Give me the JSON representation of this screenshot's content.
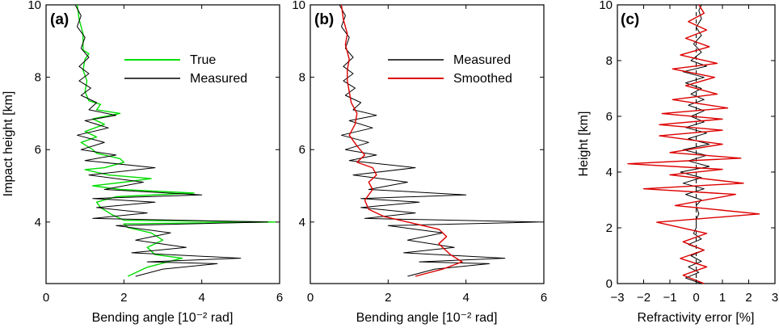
{
  "chart_data": [
    {
      "panel": "(a)",
      "type": "line",
      "xlabel": "Bending angle [10⁻² rad]",
      "ylabel": "Impact height [km]",
      "xlim": [
        0,
        6
      ],
      "ylim": [
        2.3,
        10
      ],
      "xticks": [
        "0",
        "2",
        "4",
        "6"
      ],
      "yticks": [
        "4",
        "6",
        "8",
        "10"
      ],
      "legend": "top-right",
      "series": [
        {
          "name": "True",
          "color": "#00dd00",
          "points": [
            [
              2.1,
              2.5
            ],
            [
              2.6,
              2.75
            ],
            [
              3.3,
              2.95
            ],
            [
              3.5,
              3.0
            ],
            [
              2.8,
              3.1
            ],
            [
              2.6,
              3.3
            ],
            [
              3.0,
              3.5
            ],
            [
              2.7,
              3.7
            ],
            [
              2.1,
              3.85
            ],
            [
              2.0,
              3.95
            ],
            [
              5.9,
              4.0
            ],
            [
              2.0,
              4.05
            ],
            [
              1.7,
              4.2
            ],
            [
              1.4,
              4.4
            ],
            [
              1.3,
              4.55
            ],
            [
              1.8,
              4.7
            ],
            [
              3.8,
              4.8
            ],
            [
              1.9,
              4.9
            ],
            [
              1.2,
              5.0
            ],
            [
              2.0,
              5.1
            ],
            [
              2.7,
              5.2
            ],
            [
              1.6,
              5.3
            ],
            [
              1.0,
              5.45
            ],
            [
              1.5,
              5.5
            ],
            [
              2.0,
              5.65
            ],
            [
              1.9,
              5.75
            ],
            [
              1.3,
              5.9
            ],
            [
              1.2,
              6.0
            ],
            [
              0.9,
              6.2
            ],
            [
              1.3,
              6.35
            ],
            [
              1.0,
              6.5
            ],
            [
              1.5,
              6.7
            ],
            [
              1.2,
              6.85
            ],
            [
              1.9,
              7.0
            ],
            [
              1.3,
              7.1
            ],
            [
              1.4,
              7.25
            ],
            [
              1.1,
              7.35
            ],
            [
              1.0,
              7.6
            ],
            [
              1.05,
              7.9
            ],
            [
              0.95,
              8.2
            ],
            [
              1.0,
              8.5
            ],
            [
              1.1,
              8.65
            ],
            [
              0.95,
              8.75
            ],
            [
              0.95,
              9.2
            ],
            [
              0.85,
              9.6
            ],
            [
              0.8,
              10.0
            ]
          ]
        },
        {
          "name": "Measured",
          "color": "#000000",
          "points": [
            [
              2.3,
              2.5
            ],
            [
              3.0,
              2.7
            ],
            [
              4.4,
              2.85
            ],
            [
              2.6,
              2.9
            ],
            [
              5.0,
              3.0
            ],
            [
              2.2,
              3.15
            ],
            [
              3.6,
              3.3
            ],
            [
              2.3,
              3.5
            ],
            [
              3.2,
              3.7
            ],
            [
              1.8,
              3.9
            ],
            [
              5.7,
              4.0
            ],
            [
              1.2,
              4.1
            ],
            [
              2.6,
              4.25
            ],
            [
              1.3,
              4.4
            ],
            [
              2.8,
              4.55
            ],
            [
              1.2,
              4.65
            ],
            [
              4.0,
              4.75
            ],
            [
              1.5,
              4.9
            ],
            [
              2.5,
              5.1
            ],
            [
              1.1,
              5.3
            ],
            [
              2.8,
              5.5
            ],
            [
              1.0,
              5.7
            ],
            [
              1.8,
              5.85
            ],
            [
              0.9,
              6.0
            ],
            [
              1.5,
              6.2
            ],
            [
              0.8,
              6.4
            ],
            [
              1.6,
              6.6
            ],
            [
              1.0,
              6.8
            ],
            [
              1.8,
              6.95
            ],
            [
              1.1,
              7.1
            ],
            [
              1.3,
              7.3
            ],
            [
              0.9,
              7.5
            ],
            [
              1.15,
              7.7
            ],
            [
              0.85,
              7.9
            ],
            [
              1.1,
              8.1
            ],
            [
              0.85,
              8.3
            ],
            [
              1.1,
              8.55
            ],
            [
              0.9,
              8.8
            ],
            [
              1.0,
              9.1
            ],
            [
              0.8,
              9.4
            ],
            [
              0.9,
              9.7
            ],
            [
              0.75,
              10.0
            ]
          ]
        }
      ]
    },
    {
      "panel": "(b)",
      "type": "line",
      "xlabel": "Bending angle [10⁻² rad]",
      "ylabel": "",
      "xlim": [
        0,
        6
      ],
      "ylim": [
        2.3,
        10
      ],
      "xticks": [
        "0",
        "2",
        "4",
        "6"
      ],
      "yticks": [
        "4",
        "6",
        "8",
        "10"
      ],
      "legend": "top-right",
      "series": [
        {
          "name": "Measured",
          "color": "#000000",
          "points": [
            [
              2.5,
              2.5
            ],
            [
              3.2,
              2.7
            ],
            [
              4.6,
              2.85
            ],
            [
              2.8,
              2.9
            ],
            [
              5.0,
              3.0
            ],
            [
              2.4,
              3.15
            ],
            [
              3.7,
              3.3
            ],
            [
              2.5,
              3.5
            ],
            [
              3.4,
              3.7
            ],
            [
              2.0,
              3.9
            ],
            [
              5.9,
              4.0
            ],
            [
              1.4,
              4.1
            ],
            [
              2.7,
              4.25
            ],
            [
              1.3,
              4.4
            ],
            [
              2.8,
              4.55
            ],
            [
              1.3,
              4.65
            ],
            [
              4.0,
              4.75
            ],
            [
              1.5,
              4.9
            ],
            [
              2.5,
              5.1
            ],
            [
              1.1,
              5.3
            ],
            [
              2.7,
              5.5
            ],
            [
              1.0,
              5.7
            ],
            [
              1.7,
              5.85
            ],
            [
              0.9,
              6.0
            ],
            [
              1.5,
              6.2
            ],
            [
              0.8,
              6.4
            ],
            [
              1.6,
              6.6
            ],
            [
              1.0,
              6.8
            ],
            [
              1.7,
              6.95
            ],
            [
              1.1,
              7.1
            ],
            [
              1.3,
              7.3
            ],
            [
              0.9,
              7.5
            ],
            [
              1.15,
              7.7
            ],
            [
              0.85,
              7.9
            ],
            [
              1.1,
              8.1
            ],
            [
              0.85,
              8.3
            ],
            [
              1.1,
              8.55
            ],
            [
              0.9,
              8.8
            ],
            [
              1.0,
              9.1
            ],
            [
              0.8,
              9.4
            ],
            [
              0.9,
              9.7
            ],
            [
              0.75,
              10.0
            ]
          ]
        },
        {
          "name": "Smoothed",
          "color": "#dd0000",
          "points": [
            [
              2.7,
              2.5
            ],
            [
              3.4,
              2.7
            ],
            [
              3.9,
              2.9
            ],
            [
              3.6,
              3.1
            ],
            [
              3.3,
              3.4
            ],
            [
              3.5,
              3.6
            ],
            [
              3.3,
              3.8
            ],
            [
              2.5,
              4.0
            ],
            [
              1.9,
              4.15
            ],
            [
              1.5,
              4.35
            ],
            [
              1.4,
              4.6
            ],
            [
              1.6,
              4.9
            ],
            [
              1.5,
              5.1
            ],
            [
              1.7,
              5.3
            ],
            [
              1.6,
              5.5
            ],
            [
              1.2,
              5.65
            ],
            [
              1.4,
              5.85
            ],
            [
              1.2,
              6.1
            ],
            [
              1.0,
              6.4
            ],
            [
              1.15,
              6.7
            ],
            [
              1.2,
              7.0
            ],
            [
              1.05,
              7.3
            ],
            [
              1.0,
              7.6
            ],
            [
              0.95,
              7.9
            ],
            [
              0.95,
              8.2
            ],
            [
              1.0,
              8.5
            ],
            [
              0.9,
              8.9
            ],
            [
              0.95,
              9.2
            ],
            [
              0.85,
              9.6
            ],
            [
              0.8,
              10.0
            ]
          ]
        }
      ]
    },
    {
      "panel": "(c)",
      "type": "line",
      "xlabel": "Refractivity error [%]",
      "ylabel": "Height [km]",
      "xlim": [
        -3,
        3
      ],
      "ylim": [
        0,
        10
      ],
      "xticks": [
        "−3",
        "−2",
        "−1",
        "0",
        "1",
        "2",
        "3"
      ],
      "yticks": [
        "0",
        "2",
        "4",
        "6",
        "8",
        "10"
      ],
      "zero_line": "dashed",
      "series": [
        {
          "name": "black",
          "color": "#000000",
          "points": [
            [
              0.2,
              0
            ],
            [
              -0.4,
              0.2
            ],
            [
              0.1,
              0.4
            ],
            [
              -0.3,
              0.6
            ],
            [
              0.2,
              0.8
            ],
            [
              -0.2,
              1.0
            ],
            [
              0.3,
              1.2
            ],
            [
              -0.3,
              1.4
            ],
            [
              0.2,
              1.6
            ],
            [
              -0.1,
              1.8
            ],
            [
              0.0,
              2.0
            ],
            [
              0.0,
              2.3
            ],
            [
              0.1,
              2.5
            ],
            [
              0.0,
              2.8
            ],
            [
              0.2,
              3.0
            ],
            [
              -0.4,
              3.2
            ],
            [
              0.3,
              3.4
            ],
            [
              -0.5,
              3.6
            ],
            [
              0.2,
              3.8
            ],
            [
              -0.6,
              4.0
            ],
            [
              0.5,
              4.2
            ],
            [
              -0.3,
              4.4
            ],
            [
              0.4,
              4.6
            ],
            [
              -0.5,
              4.8
            ],
            [
              0.5,
              5.0
            ],
            [
              -0.3,
              5.2
            ],
            [
              0.4,
              5.4
            ],
            [
              -0.4,
              5.6
            ],
            [
              0.3,
              5.8
            ],
            [
              -0.2,
              6.0
            ],
            [
              0.3,
              6.2
            ],
            [
              -0.3,
              6.4
            ],
            [
              0.3,
              6.6
            ],
            [
              -0.2,
              6.8
            ],
            [
              0.2,
              7.0
            ],
            [
              -0.4,
              7.2
            ],
            [
              0.3,
              7.4
            ],
            [
              -0.5,
              7.6
            ],
            [
              0.4,
              7.8
            ],
            [
              -0.2,
              8.0
            ],
            [
              0.2,
              8.3
            ],
            [
              -0.1,
              8.6
            ],
            [
              0.2,
              8.9
            ],
            [
              0.0,
              9.2
            ],
            [
              0.2,
              9.5
            ],
            [
              0.1,
              9.8
            ],
            [
              0.2,
              10.0
            ]
          ]
        },
        {
          "name": "red",
          "color": "#dd0000",
          "points": [
            [
              0.3,
              0
            ],
            [
              -0.5,
              0.3
            ],
            [
              0.4,
              0.6
            ],
            [
              -0.6,
              0.9
            ],
            [
              0.3,
              1.2
            ],
            [
              -0.5,
              1.5
            ],
            [
              0.4,
              1.8
            ],
            [
              -1.5,
              2.2
            ],
            [
              2.4,
              2.5
            ],
            [
              -0.8,
              2.8
            ],
            [
              1.5,
              3.2
            ],
            [
              -2.0,
              3.4
            ],
            [
              1.8,
              3.6
            ],
            [
              -1.0,
              3.9
            ],
            [
              1.0,
              4.1
            ],
            [
              -2.6,
              4.3
            ],
            [
              1.7,
              4.5
            ],
            [
              -1.0,
              4.7
            ],
            [
              1.0,
              5.0
            ],
            [
              -1.4,
              5.3
            ],
            [
              1.0,
              5.5
            ],
            [
              -1.4,
              5.7
            ],
            [
              1.0,
              5.9
            ],
            [
              -1.3,
              6.1
            ],
            [
              1.2,
              6.3
            ],
            [
              -0.9,
              6.6
            ],
            [
              0.8,
              6.8
            ],
            [
              -0.4,
              7.1
            ],
            [
              0.7,
              7.4
            ],
            [
              -0.9,
              7.7
            ],
            [
              0.8,
              7.9
            ],
            [
              -0.6,
              8.2
            ],
            [
              0.5,
              8.5
            ],
            [
              -0.4,
              8.8
            ],
            [
              0.4,
              9.1
            ],
            [
              -0.3,
              9.4
            ],
            [
              0.3,
              9.7
            ],
            [
              0.1,
              10.0
            ]
          ]
        }
      ]
    }
  ]
}
